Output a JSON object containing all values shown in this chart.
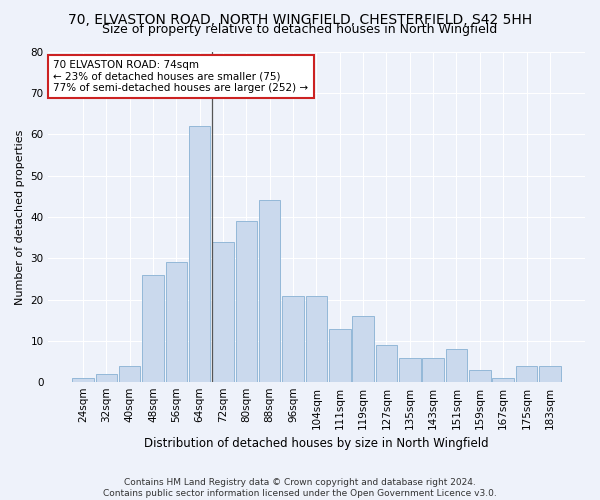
{
  "title1": "70, ELVASTON ROAD, NORTH WINGFIELD, CHESTERFIELD, S42 5HH",
  "title2": "Size of property relative to detached houses in North Wingfield",
  "xlabel": "Distribution of detached houses by size in North Wingfield",
  "ylabel": "Number of detached properties",
  "categories": [
    "24sqm",
    "32sqm",
    "40sqm",
    "48sqm",
    "56sqm",
    "64sqm",
    "72sqm",
    "80sqm",
    "88sqm",
    "96sqm",
    "104sqm",
    "111sqm",
    "119sqm",
    "127sqm",
    "135sqm",
    "143sqm",
    "151sqm",
    "159sqm",
    "167sqm",
    "175sqm",
    "183sqm"
  ],
  "values": [
    1,
    2,
    4,
    26,
    29,
    62,
    34,
    39,
    44,
    21,
    21,
    13,
    16,
    9,
    6,
    6,
    8,
    3,
    1,
    4,
    4
  ],
  "bar_color": "#cad9ed",
  "bar_edge_color": "#93b8d8",
  "highlight_bar_index": 5,
  "highlight_line_color": "#555555",
  "annotation_text": "70 ELVASTON ROAD: 74sqm\n← 23% of detached houses are smaller (75)\n77% of semi-detached houses are larger (252) →",
  "annotation_box_color": "#ffffff",
  "annotation_box_edge_color": "#cc2222",
  "ylim": [
    0,
    80
  ],
  "yticks": [
    0,
    10,
    20,
    30,
    40,
    50,
    60,
    70,
    80
  ],
  "footer": "Contains HM Land Registry data © Crown copyright and database right 2024.\nContains public sector information licensed under the Open Government Licence v3.0.",
  "bg_color": "#eef2fa",
  "grid_color": "#ffffff",
  "title1_fontsize": 10,
  "title2_fontsize": 9,
  "xlabel_fontsize": 8.5,
  "ylabel_fontsize": 8,
  "tick_fontsize": 7.5,
  "ann_fontsize": 7.5,
  "footer_fontsize": 6.5
}
